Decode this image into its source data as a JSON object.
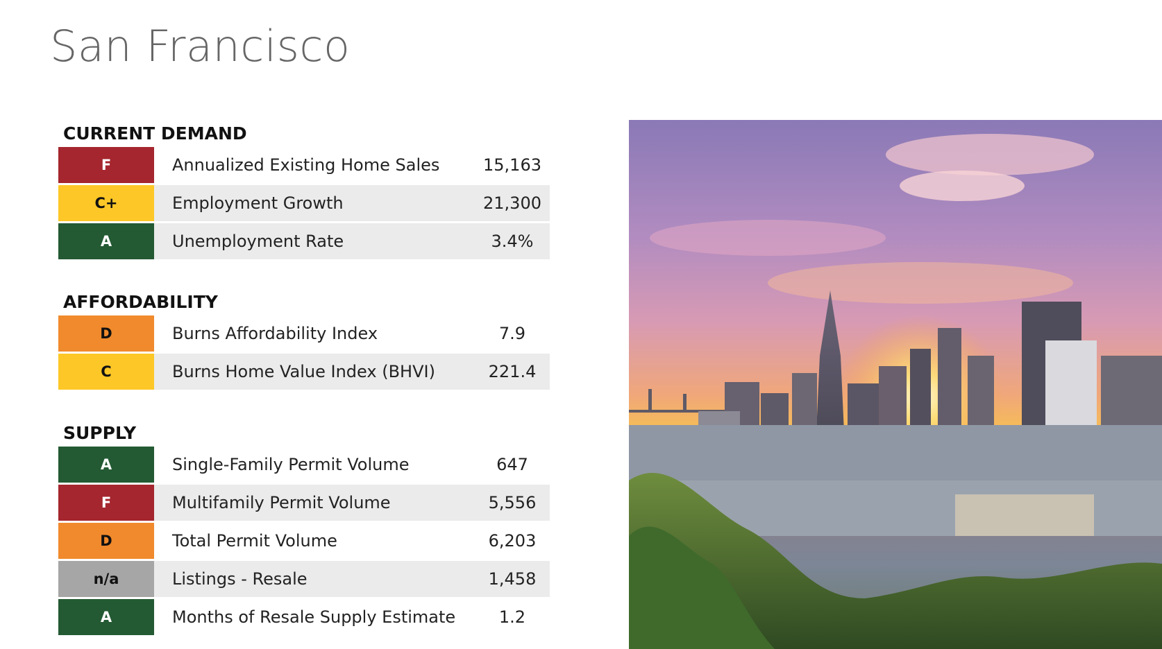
{
  "title": "San Francisco",
  "sections": [
    {
      "heading": "CURRENT DEMAND",
      "rows": [
        {
          "grade": "F",
          "label": "Annualized Existing Home Sales",
          "value": "15,163"
        },
        {
          "grade": "C+",
          "label": "Employment Growth",
          "value": "21,300"
        },
        {
          "grade": "A",
          "label": "Unemployment Rate",
          "value": "3.4%"
        }
      ]
    },
    {
      "heading": "AFFORDABILITY",
      "rows": [
        {
          "grade": "D",
          "label": "Burns Affordability Index",
          "value": "7.9"
        },
        {
          "grade": "C",
          "label": "Burns Home Value Index (BHVI)",
          "value": "221.4"
        }
      ]
    },
    {
      "heading": "SUPPLY",
      "rows": [
        {
          "grade": "A",
          "label": "Single-Family Permit Volume",
          "value": "647"
        },
        {
          "grade": "F",
          "label": "Multifamily Permit Volume",
          "value": "5,556"
        },
        {
          "grade": "D",
          "label": "Total Permit Volume",
          "value": "6,203"
        },
        {
          "grade": "n/a",
          "label": "Listings - Resale",
          "value": "1,458"
        },
        {
          "grade": "A",
          "label": "Months of Resale Supply Estimate",
          "value": "1.2"
        }
      ]
    }
  ],
  "grade_colors": {
    "F": "#a5262e",
    "C+": "#fdc728",
    "C": "#fdc728",
    "A": "#235a33",
    "D": "#f08a2c",
    "n/a": "#a6a6a6"
  },
  "photo": {
    "subject": "city-skyline-sunset-image"
  }
}
